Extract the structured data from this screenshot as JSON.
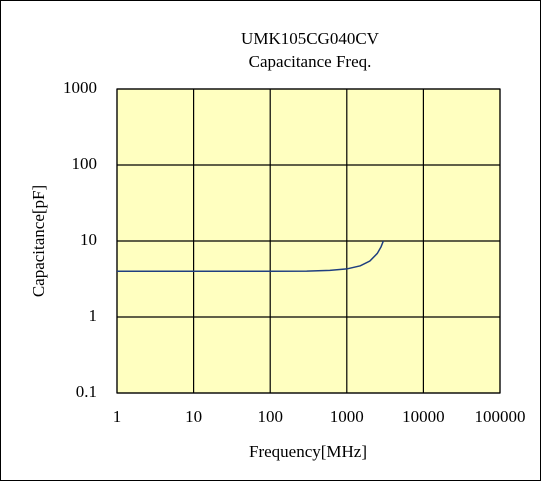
{
  "chart_data": {
    "type": "line",
    "title": "UMK105CG040CV",
    "subtitle": "Capacitance Freq.",
    "x_label": "Frequency[MHz]",
    "y_label": "Capacitance[pF]",
    "x": [
      1,
      10,
      100,
      300,
      600,
      1000,
      1500,
      2000,
      2500,
      2800,
      3000
    ],
    "values": [
      4.0,
      4.0,
      4.0,
      4.02,
      4.1,
      4.29,
      4.71,
      5.45,
      6.86,
      8.38,
      10
    ],
    "color": "#1f3f7f",
    "xscale": "log",
    "yscale": "log",
    "xlim": [
      1,
      100000
    ],
    "xticks": [
      1,
      10,
      100,
      1000,
      10000,
      100000
    ],
    "ylim": [
      0.1,
      1000
    ],
    "yticks": [
      0.1,
      1,
      10,
      100,
      1000
    ],
    "grid": true,
    "plot_background": "#ffffc0"
  }
}
